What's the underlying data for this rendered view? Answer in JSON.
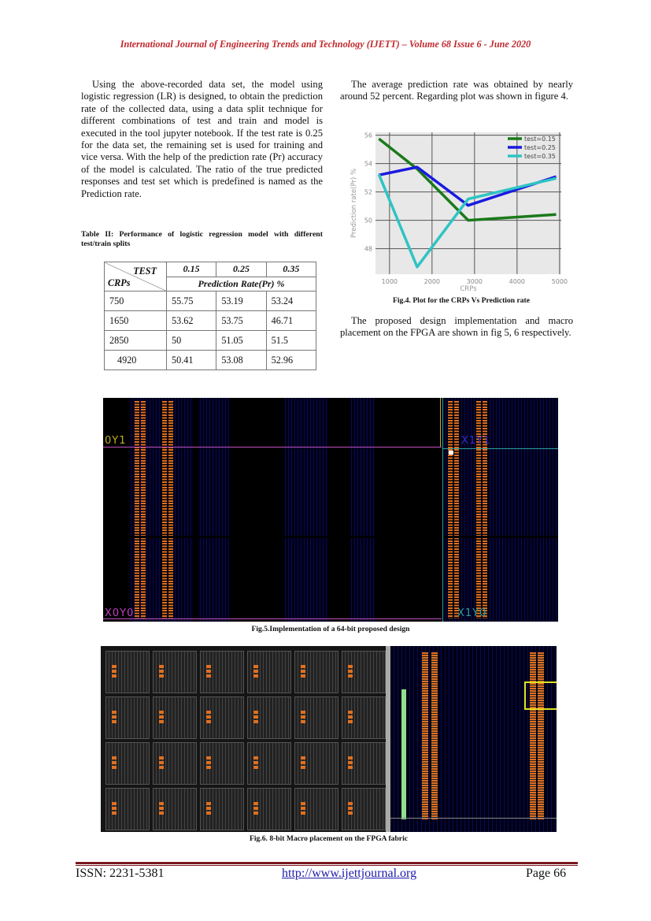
{
  "header": "International Journal of Engineering Trends and Technology (IJETT) – Volume 68 Issue 6 - June 2020",
  "left_para": "Using the above-recorded data set, the model using logistic regression (LR) is designed, to obtain the prediction rate of the collected data, using a data split technique for different combinations of test and train and model is executed in the tool jupyter notebook. If the test rate is 0.25 for the data set, the remaining set is used for training and vice versa. With the help of the prediction rate (Pr) accuracy of the model is calculated. The ratio of the true predicted responses and test set which is predefined is named as the Prediction rate.",
  "table": {
    "caption": "Table II: Performance of logistic regression model with different test/train splits",
    "corner_top": "TEST",
    "corner_bottom": "CRPs",
    "tests": [
      "0.15",
      "0.25",
      "0.35"
    ],
    "subheader": "Prediction Rate(Pr) %",
    "rows": [
      [
        "750",
        "55.75",
        "53.19",
        "53.24"
      ],
      [
        "1650",
        "53.62",
        "53.75",
        "46.71"
      ],
      [
        "2850",
        "50",
        "51.05",
        "51.5"
      ],
      [
        "4920",
        "50.41",
        "53.08",
        "52.96"
      ]
    ]
  },
  "right_para1": "The average prediction rate was obtained by nearly around 52 percent. Regarding plot was shown in figure 4.",
  "chart_data": {
    "type": "line",
    "xlabel": "CRPs",
    "ylabel": "Prediction rate(Pr) %",
    "x": [
      750,
      1650,
      2850,
      4920
    ],
    "xticks": [
      "1000",
      "2000",
      "3000",
      "4000",
      "5000"
    ],
    "yticks": [
      "48",
      "50",
      "52",
      "54",
      "56"
    ],
    "xlim": [
      670,
      5040
    ],
    "ylim": [
      46.2,
      56.2
    ],
    "grid": true,
    "legend": "top-right",
    "background": "#e8e8e8",
    "series": [
      {
        "name": "test=0.15",
        "color": "#1a7a1a",
        "values": [
          55.75,
          53.62,
          50,
          50.41
        ]
      },
      {
        "name": "test=0.25",
        "color": "#1a1ae0",
        "values": [
          53.19,
          53.75,
          51.05,
          53.08
        ]
      },
      {
        "name": "test=0.35",
        "color": "#2ec4c4",
        "values": [
          53.24,
          46.71,
          51.5,
          52.96
        ]
      }
    ]
  },
  "fig4_caption": "Fig.4. Plot for the CRPs Vs Prediction rate",
  "right_para2": "The proposed design implementation and macro placement on the FPGA are shown in fig 5, 6 respectively.",
  "fig5": {
    "labels": [
      "0Y1",
      "X1Y1",
      "X0Y0",
      "X1Y0"
    ],
    "caption": "Fig.5.Implementation of a 64-bit proposed design"
  },
  "fig6_caption": "Fig.6. 8-bit Macro placement on the FPGA fabric",
  "footer": {
    "issn": "ISSN: 2231-5381",
    "url": "http://www.ijettjournal.org",
    "page": "Page 66"
  }
}
